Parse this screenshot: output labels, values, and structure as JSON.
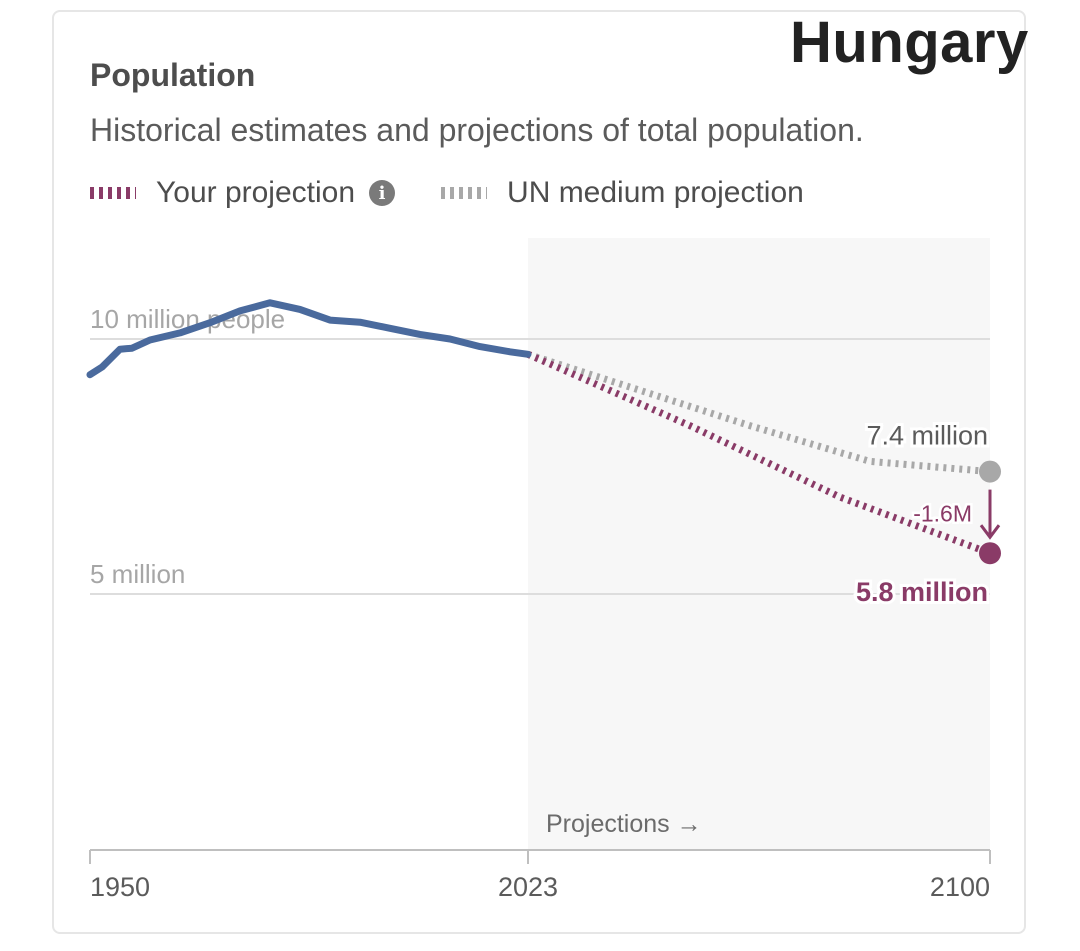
{
  "overlay": {
    "title": "Hungary"
  },
  "chart_data": {
    "type": "line",
    "title": "Population",
    "subtitle": "Historical estimates and projections of total population.",
    "xlabel": "",
    "ylabel": "",
    "xlim": [
      1950,
      2100
    ],
    "ylim": [
      0,
      11000000
    ],
    "x_ticks": [
      {
        "value": 1950,
        "label": "1950"
      },
      {
        "value": 2023,
        "label": "2023"
      },
      {
        "value": 2100,
        "label": "2100"
      }
    ],
    "y_ticks": [
      {
        "value": 5000000,
        "label": "5 million"
      },
      {
        "value": 10000000,
        "label": "10 million people"
      }
    ],
    "grid": "horizontal",
    "legend": {
      "placement": "top-left",
      "items": [
        {
          "label": "Your projection",
          "style": "dotted",
          "color": "#8a3b67",
          "has_info_icon": true
        },
        {
          "label": "UN medium projection",
          "style": "dotted",
          "color": "#a8a8a8",
          "has_info_icon": false
        }
      ]
    },
    "projection_region": {
      "from": 2023,
      "to": 2100,
      "label": "Projections →"
    },
    "series": [
      {
        "name": "",
        "kind": "historical",
        "color": "#4a6a9d",
        "style": "solid",
        "points": [
          {
            "x": 1950,
            "y": 9300000
          },
          {
            "x": 1952,
            "y": 9450000
          },
          {
            "x": 1955,
            "y": 9800000
          },
          {
            "x": 1957,
            "y": 9820000
          },
          {
            "x": 1960,
            "y": 9980000
          },
          {
            "x": 1965,
            "y": 10120000
          },
          {
            "x": 1970,
            "y": 10320000
          },
          {
            "x": 1975,
            "y": 10550000
          },
          {
            "x": 1980,
            "y": 10710000
          },
          {
            "x": 1985,
            "y": 10580000
          },
          {
            "x": 1990,
            "y": 10370000
          },
          {
            "x": 1995,
            "y": 10330000
          },
          {
            "x": 2000,
            "y": 10210000
          },
          {
            "x": 2005,
            "y": 10090000
          },
          {
            "x": 2010,
            "y": 10000000
          },
          {
            "x": 2015,
            "y": 9850000
          },
          {
            "x": 2020,
            "y": 9750000
          },
          {
            "x": 2023,
            "y": 9700000
          }
        ]
      },
      {
        "name": "UN medium projection",
        "kind": "projection",
        "color": "#a8a8a8",
        "style": "dotted",
        "points": [
          {
            "x": 2023,
            "y": 9700000
          },
          {
            "x": 2060,
            "y": 8300000
          },
          {
            "x": 2080,
            "y": 7600000
          },
          {
            "x": 2100,
            "y": 7400000
          }
        ],
        "end_label": "7.4 million"
      },
      {
        "name": "Your projection",
        "kind": "projection",
        "color": "#8a3b67",
        "style": "dotted",
        "points": [
          {
            "x": 2023,
            "y": 9700000
          },
          {
            "x": 2050,
            "y": 8300000
          },
          {
            "x": 2075,
            "y": 6900000
          },
          {
            "x": 2100,
            "y": 5800000
          }
        ],
        "end_label": "5.8 million"
      }
    ],
    "difference_annotation": {
      "label": "-1.6M",
      "from_series": "UN medium projection",
      "to_series": "Your projection",
      "x": 2100
    }
  }
}
